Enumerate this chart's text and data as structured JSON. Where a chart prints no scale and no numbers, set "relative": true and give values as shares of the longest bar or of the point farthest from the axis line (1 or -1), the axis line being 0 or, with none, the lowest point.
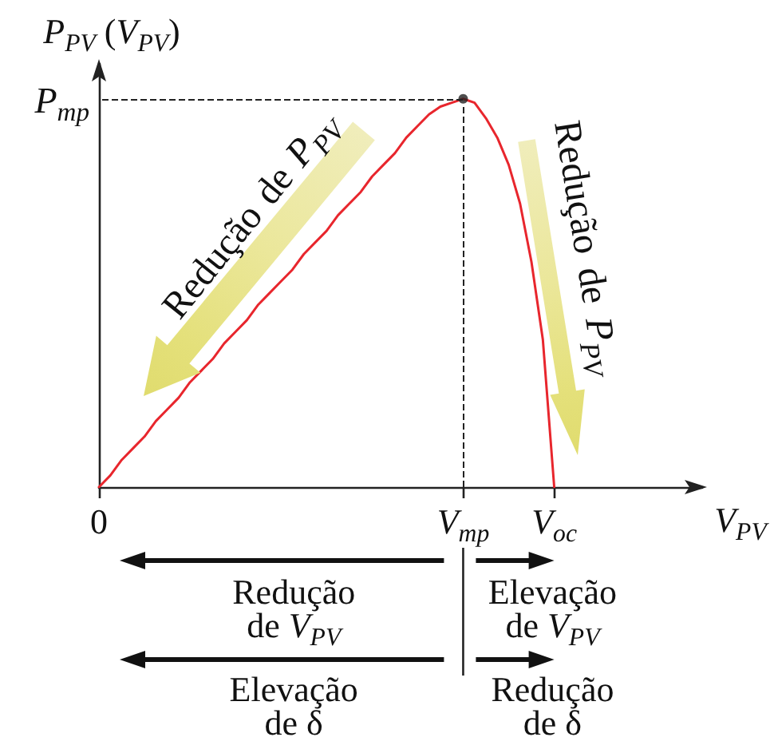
{
  "chart_data": {
    "type": "line",
    "relative": true,
    "xlabel": "V$_{PV}$",
    "ylabel": "P$_{PV}$ (V$_{PV}$)",
    "categories": [
      "0",
      null,
      null,
      null,
      null,
      null,
      null,
      null,
      null,
      null,
      null,
      null,
      null,
      null,
      null,
      null,
      null,
      null,
      null,
      null,
      null,
      null,
      null,
      null,
      null,
      null,
      null,
      null,
      null,
      null,
      null,
      null,
      "V$_{mp}$",
      null,
      null,
      null,
      null,
      null,
      null,
      null,
      "V$_{oc}$",
      null,
      null,
      null,
      null,
      null,
      null,
      null,
      null,
      null,
      null,
      null,
      null,
      null
    ],
    "series": [
      {
        "color": "#e8262d",
        "marker": "none",
        "values": [
          0,
          0.03,
          0.07,
          0.1,
          0.13,
          0.17,
          0.2,
          0.23,
          0.27,
          0.3,
          0.33,
          0.37,
          0.4,
          0.43,
          0.47,
          0.5,
          0.53,
          0.56,
          0.6,
          0.63,
          0.66,
          0.7,
          0.73,
          0.76,
          0.8,
          0.83,
          0.86,
          0.9,
          0.93,
          0.96,
          0.98,
          0.99,
          1,
          0.99,
          0.95,
          0.9,
          0.83,
          0.73,
          0.58,
          0.38,
          0,
          null,
          null,
          null,
          null,
          null,
          null,
          null,
          null,
          null,
          null,
          null,
          null,
          null
        ]
      },
      {
        "type": "scatter",
        "x": [
          "V$_{mp}$"
        ],
        "values": [
          1
        ],
        "color": "#222222",
        "marker": "circle"
      }
    ],
    "ref_lines": [
      {
        "axis": "y",
        "value": 1,
        "label": "P$_{mp}$",
        "line_style": "dashed",
        "color": "#222222"
      },
      {
        "axis": "x",
        "value": "V$_{mp}$",
        "line_style": "dashed",
        "color": "#222222"
      }
    ],
    "annotations": [
      "Redução de P$_{PV}$",
      "Redução de P$_{PV}$",
      "Redução de V$_{PV}$",
      "Elevação de V$_{PV}$",
      "Elevação de δ",
      "Redução de δ"
    ]
  }
}
